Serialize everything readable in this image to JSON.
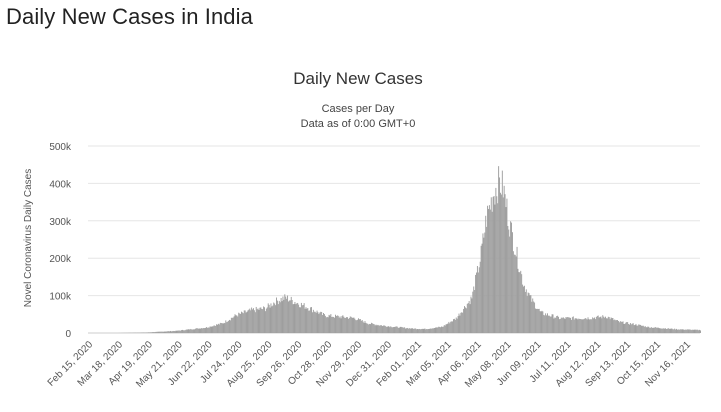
{
  "page": {
    "heading": "Daily New Cases in India"
  },
  "chart_data": {
    "type": "bar",
    "title": "Daily New Cases",
    "subtitle_line1": "Cases per Day",
    "subtitle_line2": "Data as of 0:00 GMT+0",
    "ylabel": "Novel Coronavirus Daily Cases",
    "xlabel": "",
    "ylim": [
      0,
      500000
    ],
    "yticks": [
      {
        "value": 0,
        "label": "0"
      },
      {
        "value": 100000,
        "label": "100k"
      },
      {
        "value": 200000,
        "label": "200k"
      },
      {
        "value": 300000,
        "label": "300k"
      },
      {
        "value": 400000,
        "label": "400k"
      },
      {
        "value": 500000,
        "label": "500k"
      }
    ],
    "x_start": "2020-02-15",
    "x_end": "2021-12-10",
    "xtick_labels": [
      "Feb 15, 2020",
      "Mar 18, 2020",
      "Apr 19, 2020",
      "May 21, 2020",
      "Jun 22, 2020",
      "Jul 24, 2020",
      "Aug 25, 2020",
      "Sep 26, 2020",
      "Oct 28, 2020",
      "Nov 29, 2020",
      "Dec 31, 2020",
      "Feb 01, 2021",
      "Mar 05, 2021",
      "Apr 06, 2021",
      "May 08, 2021",
      "Jun 09, 2021",
      "Jul 11, 2021",
      "Aug 12, 2021",
      "Sep 13, 2021",
      "Oct 15, 2021",
      "Nov 16, 2021"
    ],
    "grid": true,
    "legend": "none",
    "bar_color": "#9e9e9e",
    "series_points": [
      {
        "date": "2020-02-15",
        "value": 0
      },
      {
        "date": "2020-03-18",
        "value": 10
      },
      {
        "date": "2020-04-19",
        "value": 1500
      },
      {
        "date": "2020-05-21",
        "value": 6000
      },
      {
        "date": "2020-06-22",
        "value": 15000
      },
      {
        "date": "2020-07-10",
        "value": 27000
      },
      {
        "date": "2020-07-24",
        "value": 48000
      },
      {
        "date": "2020-08-10",
        "value": 62000
      },
      {
        "date": "2020-08-25",
        "value": 67000
      },
      {
        "date": "2020-09-05",
        "value": 86000
      },
      {
        "date": "2020-09-16",
        "value": 97000
      },
      {
        "date": "2020-09-26",
        "value": 85000
      },
      {
        "date": "2020-10-10",
        "value": 70000
      },
      {
        "date": "2020-10-28",
        "value": 48000
      },
      {
        "date": "2020-11-10",
        "value": 45000
      },
      {
        "date": "2020-11-29",
        "value": 41000
      },
      {
        "date": "2020-12-15",
        "value": 26000
      },
      {
        "date": "2020-12-31",
        "value": 20000
      },
      {
        "date": "2021-01-15",
        "value": 16000
      },
      {
        "date": "2021-02-01",
        "value": 12000
      },
      {
        "date": "2021-02-15",
        "value": 11000
      },
      {
        "date": "2021-03-05",
        "value": 17000
      },
      {
        "date": "2021-03-20",
        "value": 40000
      },
      {
        "date": "2021-04-06",
        "value": 96000
      },
      {
        "date": "2021-04-15",
        "value": 200000
      },
      {
        "date": "2021-04-22",
        "value": 315000
      },
      {
        "date": "2021-04-30",
        "value": 385000
      },
      {
        "date": "2021-05-06",
        "value": 412000
      },
      {
        "date": "2021-05-10",
        "value": 395000
      },
      {
        "date": "2021-05-16",
        "value": 310000
      },
      {
        "date": "2021-05-24",
        "value": 220000
      },
      {
        "date": "2021-06-01",
        "value": 135000
      },
      {
        "date": "2021-06-09",
        "value": 93000
      },
      {
        "date": "2021-06-20",
        "value": 55000
      },
      {
        "date": "2021-07-11",
        "value": 40000
      },
      {
        "date": "2021-08-12",
        "value": 41000
      },
      {
        "date": "2021-08-30",
        "value": 45000
      },
      {
        "date": "2021-09-13",
        "value": 30000
      },
      {
        "date": "2021-10-01",
        "value": 23000
      },
      {
        "date": "2021-10-15",
        "value": 16000
      },
      {
        "date": "2021-11-16",
        "value": 10000
      },
      {
        "date": "2021-12-10",
        "value": 8000
      }
    ]
  }
}
